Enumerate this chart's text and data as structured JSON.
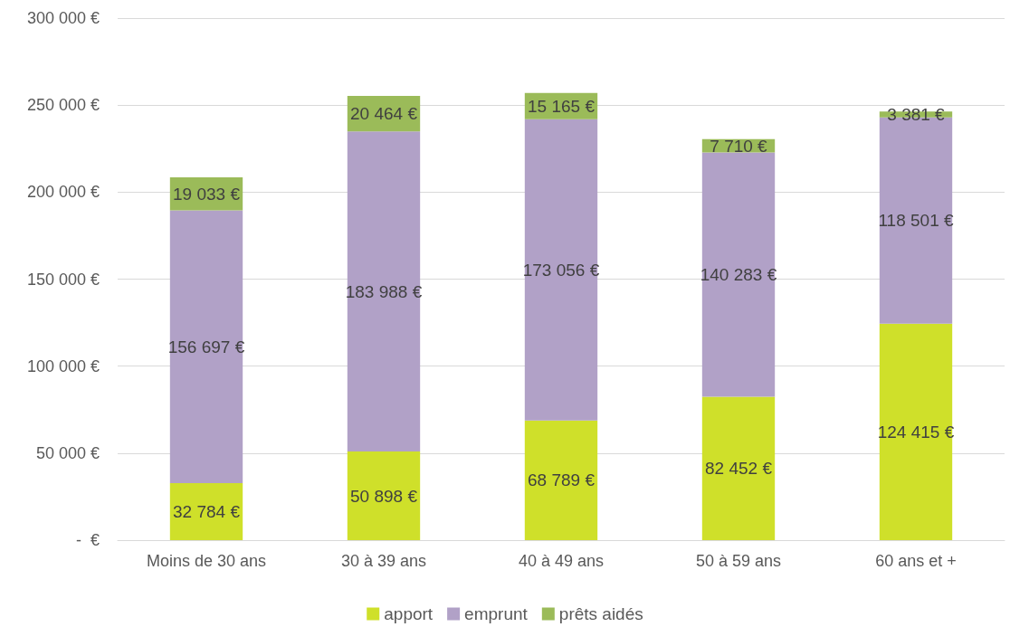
{
  "chart_data": {
    "type": "bar",
    "stacked": true,
    "categories": [
      "Moins de 30 ans",
      "30 à 39 ans",
      "40 à 49 ans",
      "50 à 59 ans",
      "60 ans et +"
    ],
    "series": [
      {
        "name": "apport",
        "color": "#cfe02a",
        "values": [
          32784,
          50898,
          68789,
          82452,
          124415
        ],
        "value_labels": [
          "32 784 €",
          "50 898 €",
          "68 789 €",
          "82 452 €",
          "124 415 €"
        ]
      },
      {
        "name": "emprunt",
        "color": "#b1a1c7",
        "values": [
          156697,
          183988,
          173056,
          140283,
          118501
        ],
        "value_labels": [
          "156 697 €",
          "183 988 €",
          "173 056 €",
          "140 283 €",
          "118 501 €"
        ]
      },
      {
        "name": "prêts aidés",
        "color": "#9bbb59",
        "values": [
          19033,
          20464,
          15165,
          7710,
          3381
        ],
        "value_labels": [
          "19 033 €",
          "20 464 €",
          "15 165 €",
          "7 710 €",
          "3 381 €"
        ]
      }
    ],
    "ylim": [
      0,
      300000
    ],
    "yticks": [
      {
        "value": 0,
        "label": "-  €"
      },
      {
        "value": 50000,
        "label": "50 000 €"
      },
      {
        "value": 100000,
        "label": "100 000 €"
      },
      {
        "value": 150000,
        "label": "150 000 €"
      },
      {
        "value": 200000,
        "label": "200 000 €"
      },
      {
        "value": 250000,
        "label": "250 000 €"
      },
      {
        "value": 300000,
        "label": "300 000 €"
      }
    ],
    "grid": "y",
    "legend": "bottom"
  }
}
